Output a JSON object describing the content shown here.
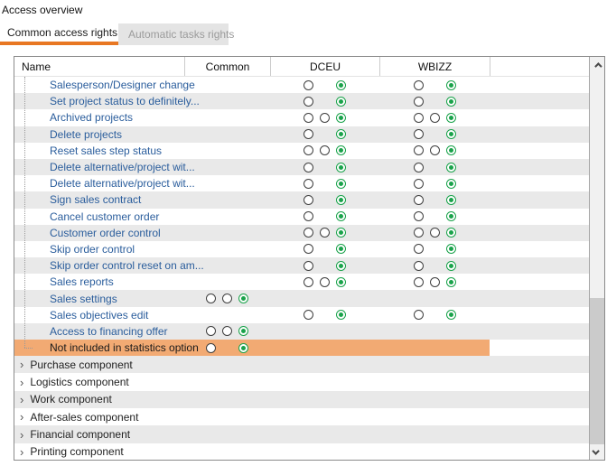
{
  "title": "Access overview",
  "tabs": [
    {
      "label": "Common access rights",
      "active": true
    },
    {
      "label": "Automatic tasks rights",
      "active": false
    }
  ],
  "icons": {
    "chevron_right": "›"
  },
  "colors": {
    "accent_orange": "#e87722",
    "highlight_row_orange": "#f2aa73",
    "alt_row_gray": "#e9e9e9",
    "link_blue": "#2a5d9c",
    "radio_green": "#19a24a",
    "inactive_tab_bg": "#e4e4e4"
  },
  "table": {
    "columns": [
      "Name",
      "Common",
      "DCEU",
      "WBIZZ"
    ],
    "rows": [
      {
        "name": "Salesperson/Designer change",
        "common": [],
        "dceu": [
          "off",
          null,
          "on"
        ],
        "wbizz": [
          "off",
          null,
          "on"
        ],
        "highlight": false
      },
      {
        "name": "Set project status to definitely...",
        "common": [],
        "dceu": [
          "off",
          null,
          "on"
        ],
        "wbizz": [
          "off",
          null,
          "on"
        ],
        "highlight": false
      },
      {
        "name": "Archived projects",
        "common": [],
        "dceu": [
          "off",
          "off",
          "on"
        ],
        "wbizz": [
          "off",
          "off",
          "on"
        ],
        "highlight": false
      },
      {
        "name": "Delete projects",
        "common": [],
        "dceu": [
          "off",
          null,
          "on"
        ],
        "wbizz": [
          "off",
          null,
          "on"
        ],
        "highlight": false
      },
      {
        "name": "Reset sales step status",
        "common": [],
        "dceu": [
          "off",
          "off",
          "on"
        ],
        "wbizz": [
          "off",
          "off",
          "on"
        ],
        "highlight": false
      },
      {
        "name": "Delete alternative/project wit...",
        "common": [],
        "dceu": [
          "off",
          null,
          "on"
        ],
        "wbizz": [
          "off",
          null,
          "on"
        ],
        "highlight": false
      },
      {
        "name": "Delete alternative/project wit...",
        "common": [],
        "dceu": [
          "off",
          null,
          "on"
        ],
        "wbizz": [
          "off",
          null,
          "on"
        ],
        "highlight": false
      },
      {
        "name": "Sign sales contract",
        "common": [],
        "dceu": [
          "off",
          null,
          "on"
        ],
        "wbizz": [
          "off",
          null,
          "on"
        ],
        "highlight": false
      },
      {
        "name": "Cancel customer order",
        "common": [],
        "dceu": [
          "off",
          null,
          "on"
        ],
        "wbizz": [
          "off",
          null,
          "on"
        ],
        "highlight": false
      },
      {
        "name": "Customer order control",
        "common": [],
        "dceu": [
          "off",
          "off",
          "on"
        ],
        "wbizz": [
          "off",
          "off",
          "on"
        ],
        "highlight": false
      },
      {
        "name": "Skip order control",
        "common": [],
        "dceu": [
          "off",
          null,
          "on"
        ],
        "wbizz": [
          "off",
          null,
          "on"
        ],
        "highlight": false
      },
      {
        "name": "Skip order control reset on am...",
        "common": [],
        "dceu": [
          "off",
          null,
          "on"
        ],
        "wbizz": [
          "off",
          null,
          "on"
        ],
        "highlight": false
      },
      {
        "name": "Sales reports",
        "common": [],
        "dceu": [
          "off",
          "off",
          "on"
        ],
        "wbizz": [
          "off",
          "off",
          "on"
        ],
        "highlight": false
      },
      {
        "name": "Sales settings",
        "common": [
          "off",
          "off",
          "on"
        ],
        "dceu": [],
        "wbizz": [],
        "highlight": false
      },
      {
        "name": "Sales objectives edit",
        "common": [],
        "dceu": [
          "off",
          null,
          "on"
        ],
        "wbizz": [
          "off",
          null,
          "on"
        ],
        "highlight": false
      },
      {
        "name": "Access to financing offer",
        "common": [
          "off",
          "off",
          "on"
        ],
        "dceu": [],
        "wbizz": [],
        "highlight": false
      },
      {
        "name": "Not included in statistics option",
        "common": [
          "off",
          null,
          "on"
        ],
        "dceu": [],
        "wbizz": [],
        "highlight": true
      }
    ],
    "groups": [
      "Purchase component",
      "Logistics component",
      "Work component",
      "After-sales component",
      "Financial component",
      "Printing component"
    ]
  }
}
